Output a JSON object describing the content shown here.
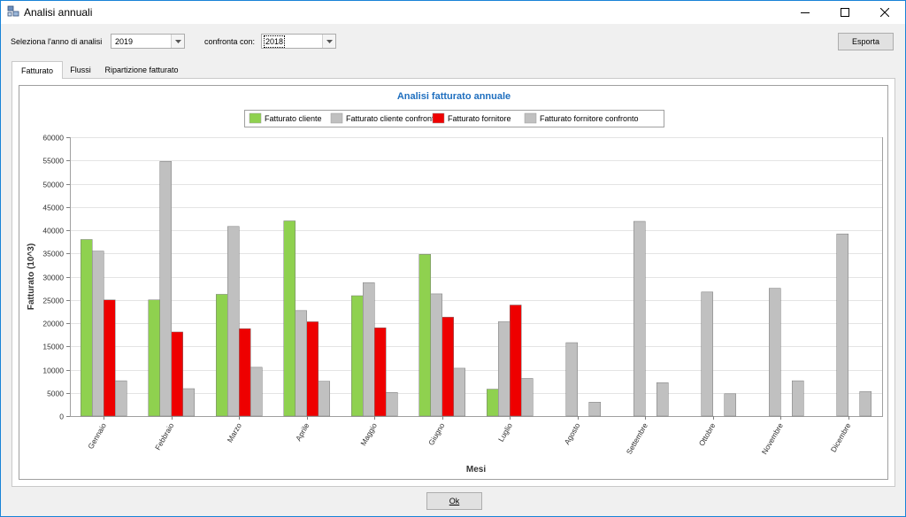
{
  "window": {
    "title": "Analisi annuali"
  },
  "filters": {
    "year_label": "Seleziona l'anno di analisi",
    "year_value": "2019",
    "compare_label": "confronta con:",
    "compare_value": "2018"
  },
  "toolbar": {
    "export_label": "Esporta",
    "ok_label": "Ok"
  },
  "tabs": [
    {
      "label": "Fatturato",
      "active": true
    },
    {
      "label": "Flussi",
      "active": false
    },
    {
      "label": "Ripartizione fatturato",
      "active": false
    }
  ],
  "colors": {
    "accent": "#1f6fbf",
    "fatturato_cliente": "#8fd14f",
    "fatturato_cliente_confronto": "#c0c0c0",
    "fatturato_fornitore": "#ee0000",
    "fatturato_fornitore_confronto": "#c0c0c0"
  },
  "chart_data": {
    "type": "bar",
    "title": "Analisi fatturato annuale",
    "xlabel": "Mesi",
    "ylabel": "Fatturato (10^3)",
    "ylim": [
      0,
      60000
    ],
    "yticks": [
      0,
      5000,
      10000,
      15000,
      20000,
      25000,
      30000,
      35000,
      40000,
      45000,
      50000,
      55000,
      60000
    ],
    "grid": true,
    "legend_position": "top-center",
    "categories": [
      "Gennaio",
      "Febbraio",
      "Marzo",
      "Aprile",
      "Maggio",
      "Giugno",
      "Luglio",
      "Agosto",
      "Settembre",
      "Ottobre",
      "Novembre",
      "Dicembre"
    ],
    "series": [
      {
        "name": "Fatturato cliente",
        "color": "#8fd14f",
        "values": [
          38000,
          25000,
          26200,
          42000,
          25900,
          34800,
          5800,
          0,
          0,
          0,
          0,
          0
        ]
      },
      {
        "name": "Fatturato cliente confronto",
        "color": "#c0c0c0",
        "values": [
          35500,
          54800,
          40800,
          22700,
          28700,
          26300,
          20300,
          15800,
          41900,
          26700,
          27500,
          39200
        ]
      },
      {
        "name": "Fatturato fornitore",
        "color": "#ee0000",
        "values": [
          25000,
          18100,
          18800,
          20300,
          19000,
          21300,
          23900,
          0,
          0,
          0,
          0,
          0
        ]
      },
      {
        "name": "Fatturato fornitore confronto",
        "color": "#c0c0c0",
        "values": [
          7600,
          5900,
          10500,
          7500,
          5100,
          10300,
          8100,
          3000,
          7200,
          4800,
          7600,
          5300
        ]
      }
    ]
  }
}
